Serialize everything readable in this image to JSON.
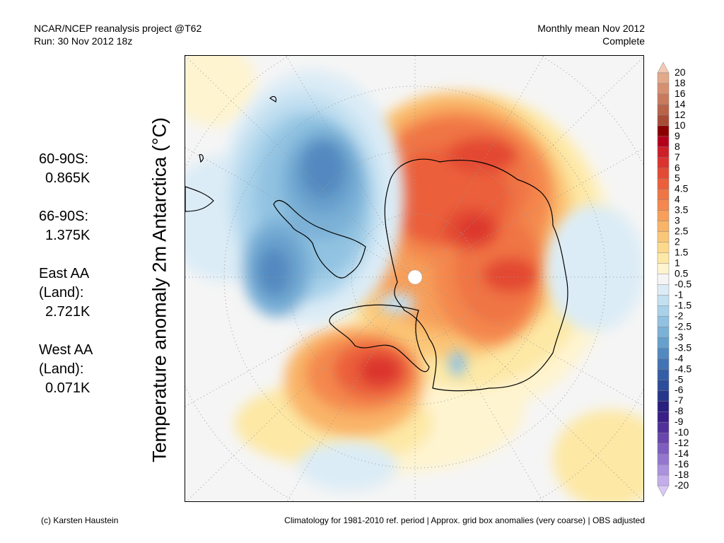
{
  "header": {
    "left_line1": "NCAR/NCEP reanalysis project @T62",
    "left_line2": "Run: 30 Nov 2012 18z",
    "right_line1": "Monthly mean Nov 2012",
    "right_line2": "Complete"
  },
  "map_title": "Temperature anomaly 2m Antarctica (°C)",
  "stats": [
    {
      "label": "60-90S:",
      "value": "0.865K"
    },
    {
      "label": "66-90S:",
      "value": "1.375K"
    },
    {
      "label": "East AA (Land):",
      "label_a": "East AA",
      "label_b": "(Land):",
      "value": "2.721K"
    },
    {
      "label": "West AA (Land):",
      "label_a": "West AA",
      "label_b": "(Land):",
      "value": "0.071K"
    }
  ],
  "colorbar": {
    "labels": [
      "20",
      "18",
      "16",
      "14",
      "12",
      "10",
      "9",
      "8",
      "7",
      "6",
      "5",
      "4.5",
      "4",
      "3.5",
      "3",
      "2.5",
      "2",
      "1.5",
      "1",
      "0.5",
      "-0.5",
      "-1",
      "-1.5",
      "-2",
      "-2.5",
      "-3",
      "-3.5",
      "-4",
      "-4.5",
      "-5",
      "-6",
      "-7",
      "-8",
      "-9",
      "-10",
      "-12",
      "-14",
      "-16",
      "-18",
      "-20"
    ],
    "colors": [
      "#f2c9b3",
      "#e2a98a",
      "#d69070",
      "#c97a5d",
      "#b96349",
      "#a84c36",
      "#8b0000",
      "#b5001c",
      "#cd1f27",
      "#db342e",
      "#e34a33",
      "#eb5f3a",
      "#f07545",
      "#f4884e",
      "#f79f5a",
      "#f9b468",
      "#fbc778",
      "#fdd98c",
      "#fde8a5",
      "#fef4d0",
      "#f5f5f5",
      "#dcecf6",
      "#c3e0f1",
      "#a9d2ea",
      "#91c2e1",
      "#7bb1d7",
      "#67a0cd",
      "#5289c0",
      "#4273b4",
      "#355ea6",
      "#2d4c9a",
      "#26368b",
      "#291f7f",
      "#3a1f88",
      "#51309b",
      "#6846ae",
      "#7e5ec0",
      "#9476d0",
      "#ab91de",
      "#c3adeb",
      "#d8c8f3"
    ]
  },
  "footer": {
    "left": "(c) Karsten Haustein",
    "right": "Climatology for 1981-2010 ref. period | Approx. grid box anomalies (very coarse) | OBS adjusted"
  }
}
